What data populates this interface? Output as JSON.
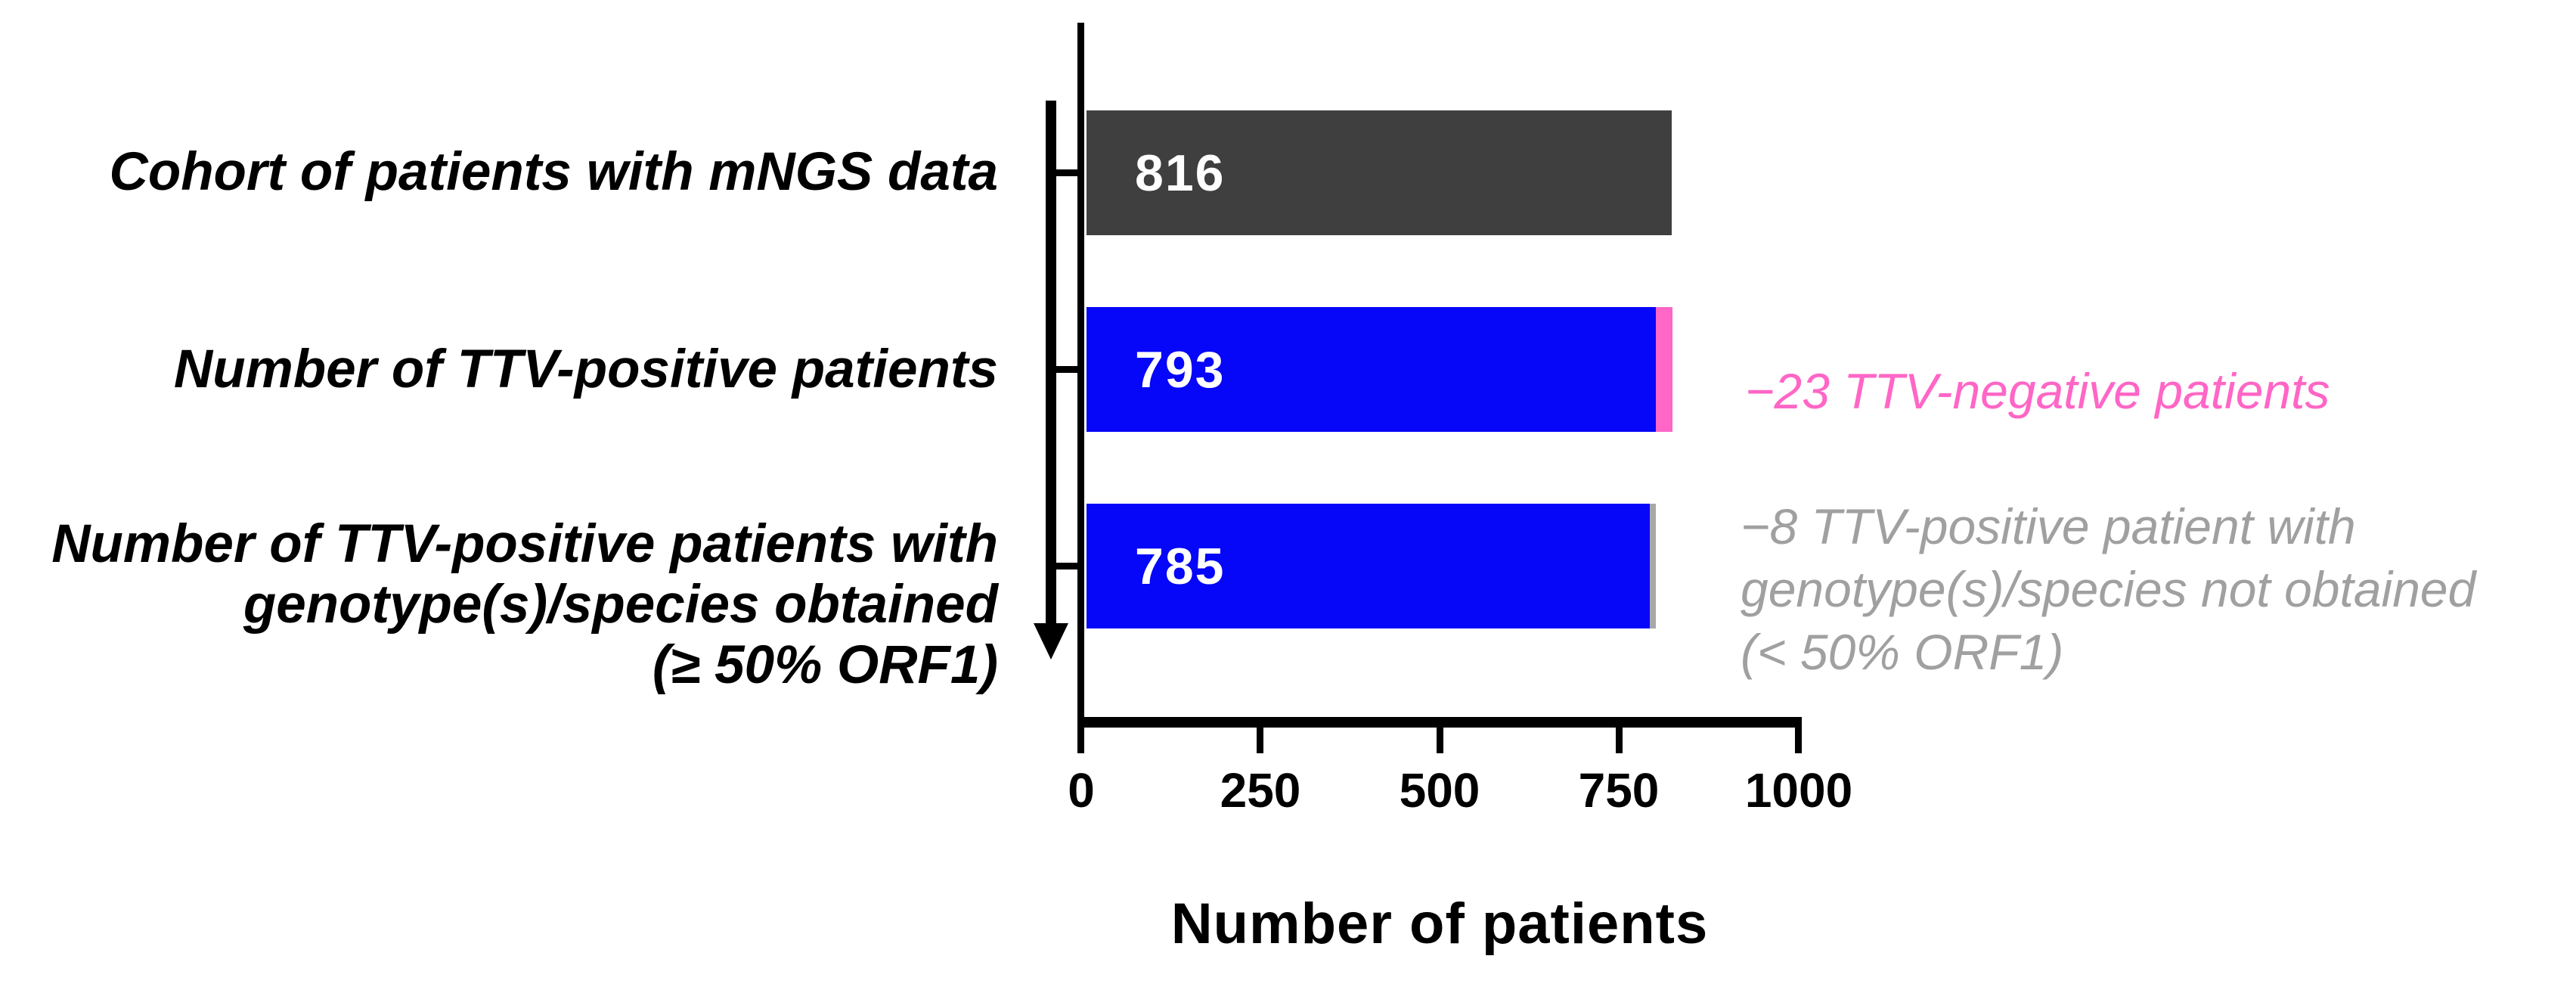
{
  "figure": {
    "background": "#FFFFFF",
    "axis_color": "#000000",
    "flow_arrow": "downward black arrow along category axis"
  },
  "chart_data": {
    "type": "bar",
    "orientation": "horizontal",
    "title": "",
    "xlabel": "Number of patients",
    "ylabel": "",
    "xlim": [
      0,
      1000
    ],
    "xticks": [
      "0",
      "250",
      "500",
      "750",
      "1000"
    ],
    "grid": false,
    "legend": false,
    "bars": [
      {
        "category_lines": [
          "Cohort of patients with mNGS data"
        ],
        "value": 816,
        "color": "#3F3F3F",
        "extra": null
      },
      {
        "category_lines": [
          "Number of TTV-positive patients"
        ],
        "value": 793,
        "color": "#0606F9",
        "extra": {
          "value": 23,
          "color": "#FF66C6"
        },
        "annotation_lines": [
          "−23 TTV-negative patients"
        ],
        "annotation_color": "#FF66C6"
      },
      {
        "category_lines": [
          "Number of TTV-positive patients with",
          "genotype(s)/species obtained",
          "(≥ 50% ORF1)"
        ],
        "value": 785,
        "color": "#0606F9",
        "extra": {
          "value": 8,
          "color": "#A8A8A8"
        },
        "annotation_lines": [
          "−8 TTV-positive patient with",
          "genotype(s)/species not obtained",
          "(< 50% ORF1)"
        ],
        "annotation_color": "#A0A0A0"
      }
    ]
  }
}
